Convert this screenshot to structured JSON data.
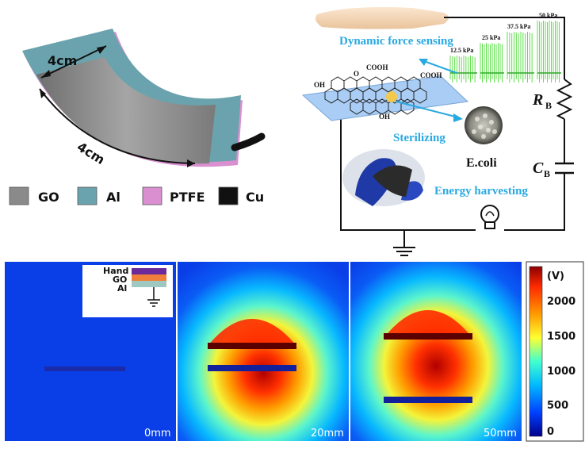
{
  "device": {
    "width_label": "4cm",
    "length_label": "4cm"
  },
  "legend": [
    {
      "label": "GO",
      "color": "#8a8a8a"
    },
    {
      "label": "Al",
      "color": "#6aa3ad"
    },
    {
      "label": "PTFE",
      "color": "#d98fd0"
    },
    {
      "label": "Cu",
      "color": "#111111"
    }
  ],
  "circuit": {
    "dynamic_force_label": "Dynamic force sensing",
    "sterilizing_label": "Sterilizing",
    "ecoli_label": "E.coli",
    "energy_label": "Energy harvesting",
    "resistor_label": "R",
    "resistor_sub": "B",
    "capacitor_label": "C",
    "capacitor_sub": "B",
    "molecule_labels": [
      "OH",
      "O",
      "COOH",
      "COOH",
      "OH"
    ],
    "pressures": [
      "12.5 kPa",
      "25 kPa",
      "37.5 kPa",
      "50 kPa"
    ]
  },
  "potential_maps": {
    "inset_labels": [
      "Hand",
      "GO",
      "Al"
    ],
    "distances": [
      "0mm",
      "20mm",
      "50mm"
    ],
    "colorbar": {
      "unit": "(V)",
      "ticks": [
        "2000",
        "1500",
        "1000",
        "500",
        "0"
      ],
      "colors": [
        "#8b0000",
        "#ff2a00",
        "#ff9a00",
        "#ffff30",
        "#40ffd0",
        "#00b8ff",
        "#0040ff",
        "#00008b"
      ]
    }
  }
}
